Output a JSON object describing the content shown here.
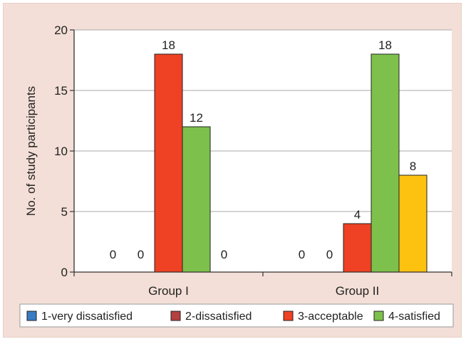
{
  "chart_data": {
    "type": "bar",
    "categories": [
      "Group I",
      "Group II"
    ],
    "ylabel": "No. of study participants",
    "ylim": [
      0,
      20
    ],
    "yticks": [
      0,
      5,
      10,
      15,
      20
    ],
    "grid": true,
    "legend_position": "bottom",
    "series": [
      {
        "name": "1-very dissatisfied",
        "color": "#3a7cc4",
        "values": [
          0,
          0
        ]
      },
      {
        "name": "2-dissatisfied",
        "color": "#b5403f",
        "values": [
          0,
          0
        ]
      },
      {
        "name": "3-acceptable",
        "color": "#ef4123",
        "values": [
          18,
          4
        ]
      },
      {
        "name": "4-satisfied",
        "color": "#7dc14c",
        "values": [
          12,
          18
        ]
      },
      {
        "name": "",
        "color": "#fcc20f",
        "values": [
          0,
          8
        ]
      }
    ]
  }
}
